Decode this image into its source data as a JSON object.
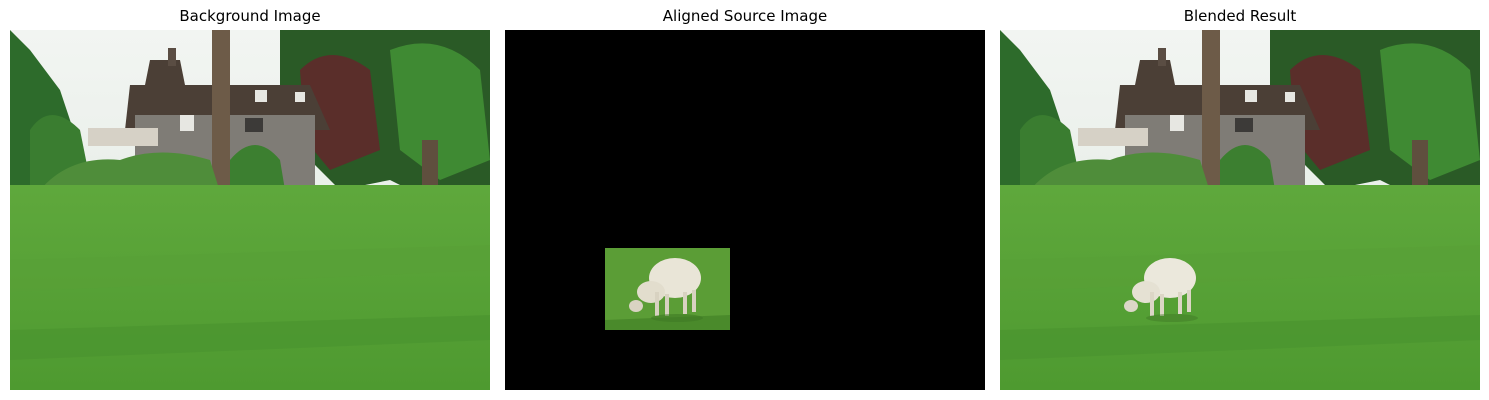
{
  "figure": {
    "panels": [
      {
        "title": "Background Image",
        "content": "house-with-lawn-photo"
      },
      {
        "title": "Aligned Source Image",
        "content": "sheep-on-black-canvas"
      },
      {
        "title": "Blended Result",
        "content": "sheep-blended-on-lawn-photo"
      }
    ]
  },
  "colors": {
    "sky": "#eef2f0",
    "grass": "#4f9a33",
    "grass_dark": "#3d7f27",
    "foliage": "#2f6a2a",
    "house_roof": "#4b3f36",
    "house_wall": "#7f7c76",
    "tree_trunk": "#6d5b48",
    "sheep": "#e8e4d6",
    "source_canvas": "#000000"
  }
}
